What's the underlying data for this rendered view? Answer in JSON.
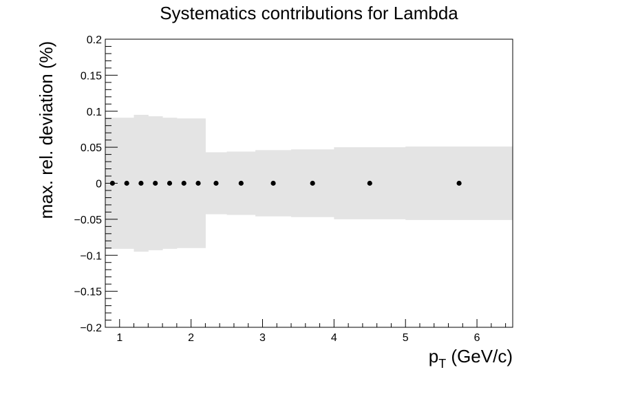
{
  "chart_data": {
    "type": "scatter",
    "title": "Systematics contributions for Lambda",
    "xlabel_main": "p",
    "xlabel_sub": "T",
    "xlabel_unit": " (GeV/c)",
    "ylabel": "max. rel. deviation (%)",
    "xlim": [
      0.8,
      6.5
    ],
    "ylim": [
      -0.2,
      0.2
    ],
    "x_ticks": [
      1,
      2,
      3,
      4,
      5,
      6
    ],
    "x_tick_labels": [
      "1",
      "2",
      "3",
      "4",
      "5",
      "6"
    ],
    "y_ticks": [
      -0.2,
      -0.15,
      -0.1,
      -0.05,
      0,
      0.05,
      0.1,
      0.15,
      0.2
    ],
    "y_tick_labels": [
      "−0.2",
      "−0.15",
      "−0.1",
      "−0.05",
      "0",
      "0.05",
      "0.1",
      "0.15",
      "0.2"
    ],
    "grid": false,
    "band_color": "#e4e4e4",
    "marker_color": "#000000",
    "bins": [
      {
        "x_low": 0.8,
        "x_high": 1.0,
        "x": 0.9,
        "y": 0,
        "err": 0.091
      },
      {
        "x_low": 1.0,
        "x_high": 1.2,
        "x": 1.1,
        "y": 0,
        "err": 0.091
      },
      {
        "x_low": 1.2,
        "x_high": 1.4,
        "x": 1.3,
        "y": 0,
        "err": 0.095
      },
      {
        "x_low": 1.4,
        "x_high": 1.6,
        "x": 1.5,
        "y": 0,
        "err": 0.093
      },
      {
        "x_low": 1.6,
        "x_high": 1.8,
        "x": 1.7,
        "y": 0,
        "err": 0.091
      },
      {
        "x_low": 1.8,
        "x_high": 2.0,
        "x": 1.9,
        "y": 0,
        "err": 0.09
      },
      {
        "x_low": 2.0,
        "x_high": 2.2,
        "x": 2.1,
        "y": 0,
        "err": 0.09
      },
      {
        "x_low": 2.2,
        "x_high": 2.5,
        "x": 2.35,
        "y": 0,
        "err": 0.043
      },
      {
        "x_low": 2.5,
        "x_high": 2.9,
        "x": 2.7,
        "y": 0,
        "err": 0.044
      },
      {
        "x_low": 2.9,
        "x_high": 3.4,
        "x": 3.15,
        "y": 0,
        "err": 0.046
      },
      {
        "x_low": 3.4,
        "x_high": 4.0,
        "x": 3.7,
        "y": 0,
        "err": 0.047
      },
      {
        "x_low": 4.0,
        "x_high": 5.0,
        "x": 4.5,
        "y": 0,
        "err": 0.05
      },
      {
        "x_low": 5.0,
        "x_high": 6.5,
        "x": 5.75,
        "y": 0,
        "err": 0.051
      }
    ]
  }
}
